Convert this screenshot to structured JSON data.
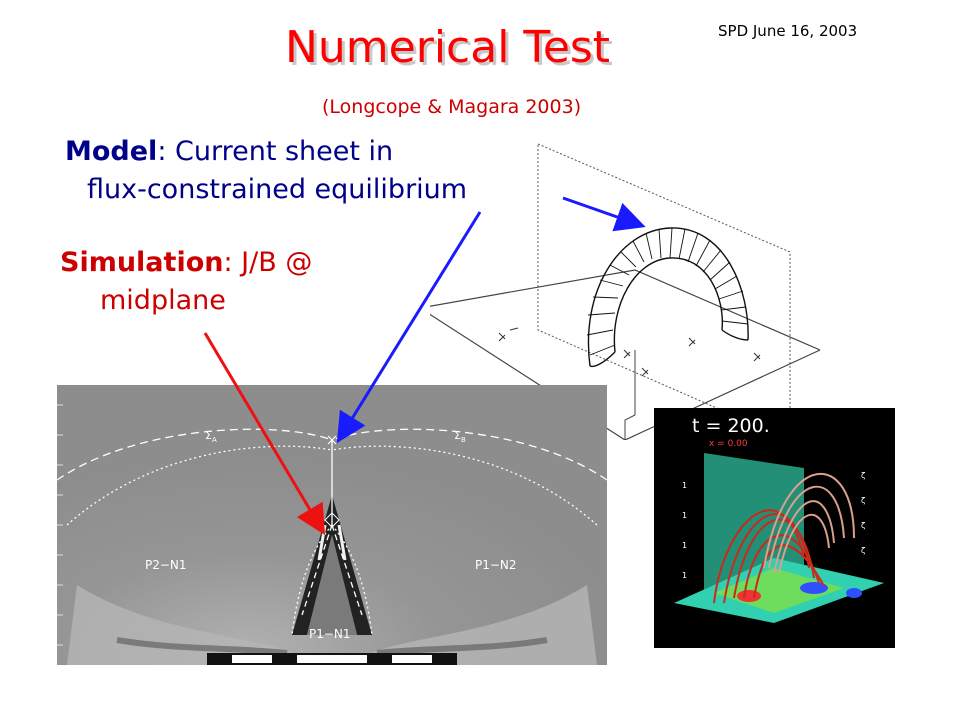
{
  "header": {
    "date": "SPD June 16, 2003",
    "title": "Numerical Test",
    "subtitle": "(Longcope & Magara 2003)"
  },
  "model": {
    "keyword": "Model",
    "text_line1": ": Current sheet in",
    "text_line2": "flux-constrained  equilibrium"
  },
  "simulation": {
    "keyword": "Simulation",
    "text_line1": ": J/B @",
    "text_line2": "midplane"
  },
  "sim_panel": {
    "label_left_sigma": "Σ",
    "label_left_sub": "A",
    "label_right_sigma": "Σ",
    "label_right_sub": "B",
    "label_p2n1": "P2−N1",
    "label_p1n2": "P1−N2",
    "label_p1n1": "P1−N1"
  },
  "inset": {
    "time_label": "t = 200.",
    "x_label": "x = 0.00"
  },
  "colors": {
    "title": "#ff0000",
    "model_text": "#00008b",
    "simulation_text": "#cc0000",
    "arrow_blue": "#1a1aff",
    "arrow_red": "#ee1111"
  }
}
